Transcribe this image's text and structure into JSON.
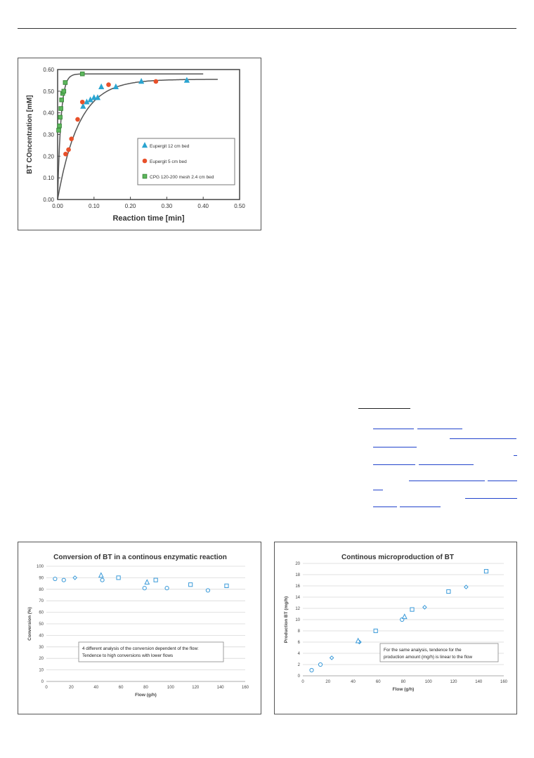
{
  "chart_data": [
    {
      "type": "scatter",
      "title": "",
      "xlabel": "Reaction time [min]",
      "ylabel": "BT COncentration [mM]",
      "xlim": [
        0,
        0.5
      ],
      "ylim": [
        0,
        0.6
      ],
      "xticks": [
        "0.00",
        "0.10",
        "0.20",
        "0.30",
        "0.40",
        "0.50"
      ],
      "yticks": [
        "0.00",
        "0.10",
        "0.20",
        "0.30",
        "0.40",
        "0.50",
        "0.60"
      ],
      "legend_position": "center-right",
      "grid": false,
      "series": [
        {
          "name": "Eupergit 12 cm bed",
          "marker": "triangle",
          "color": "#2aa4d0",
          "x": [
            0.07,
            0.08,
            0.09,
            0.1,
            0.11,
            0.12,
            0.16,
            0.23,
            0.355
          ],
          "y": [
            0.43,
            0.45,
            0.46,
            0.47,
            0.47,
            0.52,
            0.52,
            0.545,
            0.55
          ]
        },
        {
          "name": "Eupergit 5 cm bed",
          "marker": "circle",
          "color": "#e8502a",
          "x": [
            0.022,
            0.03,
            0.038,
            0.055,
            0.068,
            0.14,
            0.27
          ],
          "y": [
            0.21,
            0.23,
            0.28,
            0.37,
            0.45,
            0.53,
            0.545
          ]
        },
        {
          "name": "CPG 120-200 mesh 2.4 cm bed",
          "marker": "square",
          "color": "#5cb85c",
          "x": [
            0.003,
            0.005,
            0.007,
            0.009,
            0.011,
            0.014,
            0.017,
            0.021,
            0.068
          ],
          "y": [
            0.32,
            0.34,
            0.38,
            0.42,
            0.46,
            0.49,
            0.5,
            0.54,
            0.58
          ]
        }
      ],
      "fit_curves": [
        {
          "plateau": 0.58,
          "rate": 110,
          "x_end": 0.4
        },
        {
          "plateau": 0.555,
          "rate": 17,
          "x_end": 0.44
        }
      ]
    },
    {
      "type": "scatter",
      "title": "Conversion of BT in a continous enzymatic reaction",
      "xlabel": "Flow (g/h)",
      "ylabel": "Conversion (%)",
      "xlim": [
        0,
        160
      ],
      "ylim": [
        0,
        100
      ],
      "xticks": [
        "0",
        "20",
        "40",
        "60",
        "80",
        "100",
        "120",
        "140",
        "160"
      ],
      "yticks": [
        "0",
        "10",
        "20",
        "30",
        "40",
        "50",
        "60",
        "70",
        "80",
        "90",
        "100"
      ],
      "grid": true,
      "color": "#3a9ad9",
      "annotation": [
        "4 different analysis of the conversion dependent of the flow:",
        "Tendence to high conversions with lower flows"
      ],
      "series": [
        {
          "marker": "circle",
          "x": [
            7,
            14,
            45,
            79,
            97,
            130
          ],
          "y": [
            89,
            88,
            88,
            81,
            81,
            79
          ]
        },
        {
          "marker": "diamond",
          "x": [
            23
          ],
          "y": [
            90
          ]
        },
        {
          "marker": "triangle",
          "x": [
            44,
            81
          ],
          "y": [
            92,
            86
          ]
        },
        {
          "marker": "square",
          "x": [
            58,
            88,
            116,
            145
          ],
          "y": [
            90,
            88,
            84,
            83
          ]
        }
      ]
    },
    {
      "type": "scatter",
      "title": "Continous microproduction of BT",
      "xlabel": "Flow (g/h)",
      "ylabel": "Production BT (mg/h)",
      "xlim": [
        0,
        160
      ],
      "ylim": [
        0,
        20
      ],
      "xticks": [
        "0",
        "20",
        "40",
        "60",
        "80",
        "100",
        "120",
        "140",
        "160"
      ],
      "yticks": [
        "0",
        "2",
        "4",
        "6",
        "8",
        "10",
        "12",
        "14",
        "16",
        "18",
        "20"
      ],
      "grid": true,
      "color": "#3a9ad9",
      "annotation": [
        "For the same analysis, tendence for the",
        "production amount (mg/h) is linear to the flow"
      ],
      "series": [
        {
          "marker": "circle",
          "x": [
            7,
            14,
            79
          ],
          "y": [
            1,
            2,
            10
          ]
        },
        {
          "marker": "diamond",
          "x": [
            23,
            45,
            97,
            130
          ],
          "y": [
            3.2,
            6,
            12.2,
            15.8
          ]
        },
        {
          "marker": "triangle",
          "x": [
            44,
            81
          ],
          "y": [
            6.2,
            10.5
          ]
        },
        {
          "marker": "square",
          "x": [
            58,
            87,
            116,
            146
          ],
          "y": [
            8,
            11.8,
            15,
            18.6
          ]
        }
      ]
    }
  ]
}
